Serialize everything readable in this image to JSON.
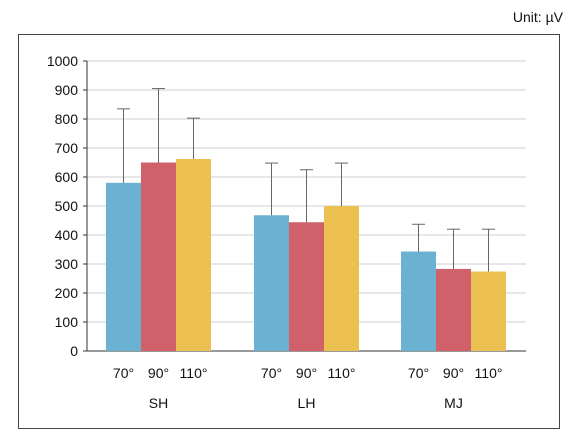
{
  "unit_label": "Unit: µV",
  "chart_data": {
    "type": "bar",
    "groups": [
      "SH",
      "LH",
      "MJ"
    ],
    "categories": [
      "70°",
      "90°",
      "110°"
    ],
    "series": [
      {
        "name": "70°",
        "color": "#6bb1d2",
        "values": [
          580,
          468,
          343
        ],
        "error_upper": [
          835,
          648,
          437
        ]
      },
      {
        "name": "90°",
        "color": "#d0616b",
        "values": [
          650,
          444,
          283
        ],
        "error_upper": [
          905,
          625,
          420
        ]
      },
      {
        "name": "110°",
        "color": "#ecc050",
        "values": [
          662,
          500,
          274
        ],
        "error_upper": [
          803,
          648,
          420
        ]
      }
    ],
    "ylim": [
      0,
      1000
    ],
    "yticks": [
      0,
      100,
      200,
      300,
      400,
      500,
      600,
      700,
      800,
      900,
      1000
    ],
    "grid": true
  }
}
